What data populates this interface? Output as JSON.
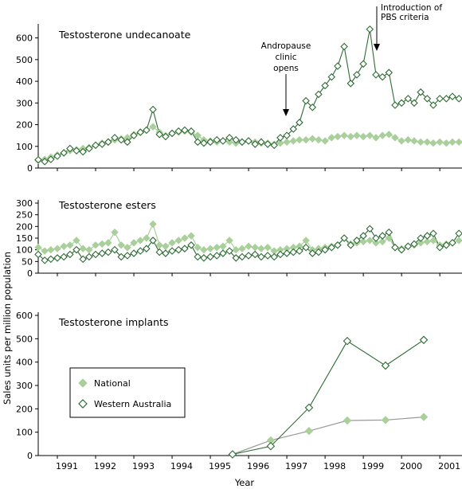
{
  "figure": {
    "ylabel": "Sales units per million population",
    "xlabel": "Year",
    "x_tick_labels": [
      "1991",
      "1992",
      "1993",
      "1994",
      "1995",
      "1996",
      "1997",
      "1998",
      "1999",
      "2000",
      "2001"
    ],
    "colors": {
      "national": "#a9cf9a",
      "wa": "#2e6b34",
      "national_line": "#9a9a9a"
    }
  },
  "legend": {
    "national": "National",
    "wa": "Western Australia"
  },
  "annotations": {
    "andropause": [
      "Andropause",
      "clinic",
      "opens"
    ],
    "pbs": [
      "Introduction of",
      "PBS criteria"
    ]
  },
  "chart_data": [
    {
      "type": "line",
      "title": "Testosterone undecanoate",
      "ylim": [
        0,
        650
      ],
      "yticks": [
        0,
        100,
        200,
        300,
        400,
        500,
        600
      ],
      "xlim": [
        1990.5,
        2001.58
      ],
      "annotations": [
        {
          "text": "Andropause clinic opens",
          "x": 1997.0
        },
        {
          "text": "Introduction of PBS criteria",
          "x": 1999.33
        }
      ],
      "series": [
        {
          "name": "National",
          "x": [
            1990.5,
            1990.67,
            1990.83,
            1991,
            1991.17,
            1991.33,
            1991.5,
            1991.67,
            1991.83,
            1992,
            1992.17,
            1992.33,
            1992.5,
            1992.67,
            1992.83,
            1993,
            1993.17,
            1993.33,
            1993.5,
            1993.67,
            1993.83,
            1994,
            1994.17,
            1994.33,
            1994.5,
            1994.67,
            1994.83,
            1995,
            1995.17,
            1995.33,
            1995.5,
            1995.67,
            1995.83,
            1996,
            1996.17,
            1996.33,
            1996.5,
            1996.67,
            1996.83,
            1997,
            1997.17,
            1997.33,
            1997.5,
            1997.67,
            1997.83,
            1998,
            1998.17,
            1998.33,
            1998.5,
            1998.67,
            1998.83,
            1999,
            1999.17,
            1999.33,
            1999.5,
            1999.67,
            1999.83,
            2000,
            2000.17,
            2000.33,
            2000.5,
            2000.67,
            2000.83,
            2001,
            2001.17,
            2001.33,
            2001.5
          ],
          "values": [
            35,
            40,
            50,
            60,
            70,
            80,
            85,
            90,
            95,
            105,
            115,
            120,
            130,
            135,
            140,
            155,
            165,
            175,
            190,
            165,
            150,
            160,
            165,
            170,
            165,
            150,
            130,
            125,
            120,
            125,
            120,
            115,
            120,
            125,
            120,
            115,
            115,
            110,
            115,
            120,
            125,
            130,
            130,
            135,
            130,
            125,
            140,
            145,
            150,
            145,
            150,
            145,
            150,
            140,
            150,
            155,
            140,
            125,
            130,
            125,
            120,
            120,
            115,
            120,
            115,
            120,
            120
          ]
        },
        {
          "name": "Western Australia",
          "x": [
            1990.5,
            1990.67,
            1990.83,
            1991,
            1991.17,
            1991.33,
            1991.5,
            1991.67,
            1991.83,
            1992,
            1992.17,
            1992.33,
            1992.5,
            1992.67,
            1992.83,
            1993,
            1993.17,
            1993.33,
            1993.5,
            1993.67,
            1993.83,
            1994,
            1994.17,
            1994.33,
            1994.5,
            1994.67,
            1994.83,
            1995,
            1995.17,
            1995.33,
            1995.5,
            1995.67,
            1995.83,
            1996,
            1996.17,
            1996.33,
            1996.5,
            1996.67,
            1996.83,
            1997,
            1997.17,
            1997.33,
            1997.5,
            1997.67,
            1997.83,
            1998,
            1998.17,
            1998.33,
            1998.5,
            1998.67,
            1998.83,
            1999,
            1999.17,
            1999.33,
            1999.5,
            1999.67,
            1999.83,
            2000,
            2000.17,
            2000.33,
            2000.5,
            2000.67,
            2000.83,
            2001,
            2001.17,
            2001.33,
            2001.5
          ],
          "values": [
            38,
            30,
            40,
            55,
            70,
            90,
            80,
            75,
            90,
            105,
            110,
            120,
            140,
            130,
            120,
            150,
            165,
            175,
            270,
            155,
            145,
            160,
            170,
            175,
            170,
            120,
            115,
            120,
            130,
            125,
            140,
            130,
            120,
            125,
            110,
            120,
            110,
            105,
            140,
            150,
            180,
            210,
            310,
            280,
            340,
            380,
            420,
            470,
            560,
            390,
            430,
            480,
            640,
            430,
            420,
            440,
            290,
            300,
            320,
            300,
            350,
            320,
            290,
            320,
            320,
            330,
            320
          ]
        }
      ]
    },
    {
      "type": "line",
      "title": "Testosterone esters",
      "ylim": [
        0,
        300
      ],
      "yticks": [
        0,
        50,
        100,
        150,
        200,
        250,
        300
      ],
      "xlim": [
        1990.5,
        2001.58
      ],
      "series": [
        {
          "name": "National",
          "x": [
            1990.5,
            1990.67,
            1990.83,
            1991,
            1991.17,
            1991.33,
            1991.5,
            1991.67,
            1991.83,
            1992,
            1992.17,
            1992.33,
            1992.5,
            1992.67,
            1992.83,
            1993,
            1993.17,
            1993.33,
            1993.5,
            1993.67,
            1993.83,
            1994,
            1994.17,
            1994.33,
            1994.5,
            1994.67,
            1994.83,
            1995,
            1995.17,
            1995.33,
            1995.5,
            1995.67,
            1995.83,
            1996,
            1996.17,
            1996.33,
            1996.5,
            1996.67,
            1996.83,
            1997,
            1997.17,
            1997.33,
            1997.5,
            1997.67,
            1997.83,
            1998,
            1998.17,
            1998.33,
            1998.5,
            1998.67,
            1998.83,
            1999,
            1999.17,
            1999.33,
            1999.5,
            1999.67,
            1999.83,
            2000,
            2000.17,
            2000.33,
            2000.5,
            2000.67,
            2000.83,
            2001,
            2001.17,
            2001.33,
            2001.5
          ],
          "values": [
            110,
            95,
            100,
            105,
            115,
            120,
            140,
            105,
            100,
            120,
            125,
            130,
            175,
            120,
            110,
            130,
            140,
            150,
            210,
            120,
            115,
            130,
            140,
            150,
            160,
            110,
            100,
            105,
            110,
            115,
            140,
            100,
            105,
            115,
            110,
            105,
            110,
            95,
            100,
            105,
            110,
            115,
            140,
            100,
            105,
            110,
            115,
            120,
            150,
            125,
            130,
            135,
            140,
            130,
            135,
            150,
            110,
            105,
            115,
            120,
            130,
            135,
            140,
            120,
            125,
            130,
            140
          ]
        },
        {
          "name": "Western Australia",
          "x": [
            1990.5,
            1990.67,
            1990.83,
            1991,
            1991.17,
            1991.33,
            1991.5,
            1991.67,
            1991.83,
            1992,
            1992.17,
            1992.33,
            1992.5,
            1992.67,
            1992.83,
            1993,
            1993.17,
            1993.33,
            1993.5,
            1993.67,
            1993.83,
            1994,
            1994.17,
            1994.33,
            1994.5,
            1994.67,
            1994.83,
            1995,
            1995.17,
            1995.33,
            1995.5,
            1995.67,
            1995.83,
            1996,
            1996.17,
            1996.33,
            1996.5,
            1996.67,
            1996.83,
            1997,
            1997.17,
            1997.33,
            1997.5,
            1997.67,
            1997.83,
            1998,
            1998.17,
            1998.33,
            1998.5,
            1998.67,
            1998.83,
            1999,
            1999.17,
            1999.33,
            1999.5,
            1999.67,
            1999.83,
            2000,
            2000.17,
            2000.33,
            2000.5,
            2000.67,
            2000.83,
            2001,
            2001.17,
            2001.33,
            2001.5
          ],
          "values": [
            80,
            55,
            60,
            65,
            70,
            80,
            100,
            60,
            70,
            80,
            85,
            90,
            100,
            70,
            75,
            85,
            95,
            105,
            140,
            90,
            85,
            95,
            100,
            105,
            120,
            70,
            65,
            70,
            75,
            85,
            95,
            65,
            70,
            75,
            80,
            70,
            75,
            70,
            80,
            85,
            90,
            95,
            110,
            85,
            90,
            100,
            110,
            120,
            150,
            120,
            140,
            160,
            190,
            150,
            160,
            175,
            110,
            100,
            115,
            125,
            150,
            160,
            170,
            110,
            120,
            130,
            170
          ]
        }
      ]
    },
    {
      "type": "line",
      "title": "Testosterone implants",
      "ylim": [
        0,
        600
      ],
      "yticks": [
        0,
        100,
        200,
        300,
        400,
        500,
        600
      ],
      "xlim": [
        1990.5,
        2001.58
      ],
      "series": [
        {
          "name": "National",
          "x": [
            1995.58,
            1996.58,
            1997.58,
            1998.58,
            1999.58,
            2000.58
          ],
          "values": [
            5,
            65,
            105,
            150,
            152,
            165
          ]
        },
        {
          "name": "Western Australia",
          "x": [
            1995.58,
            1996.58,
            1997.58,
            1998.58,
            1999.58,
            2000.58
          ],
          "values": [
            5,
            40,
            205,
            490,
            385,
            495
          ]
        }
      ]
    }
  ]
}
